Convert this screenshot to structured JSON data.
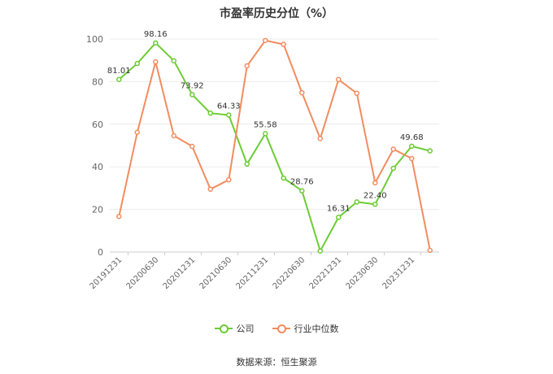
{
  "chart_data": {
    "type": "line",
    "title": "市盈率历史分位（%）",
    "xlabel": "",
    "ylabel": "",
    "ylim": [
      0,
      100
    ],
    "yticks": [
      0,
      20,
      40,
      60,
      80,
      100
    ],
    "x": [
      "20191231",
      "20200331",
      "20200630",
      "20200930",
      "20201231",
      "20210331",
      "20210630",
      "20210930",
      "20211231",
      "20220331",
      "20220630",
      "20220930",
      "20221231",
      "20230331",
      "20230630",
      "20230930",
      "20231231",
      "20240331"
    ],
    "xtick_labels": [
      "20191231",
      "20200630",
      "20201231",
      "20210630",
      "20211231",
      "20220630",
      "20221231",
      "20230630",
      "20231231"
    ],
    "grid": true,
    "legend_position": "bottom",
    "series": [
      {
        "name": "公司",
        "color": "#6ccc33",
        "values": [
          81.01,
          88.5,
          98.16,
          89.8,
          73.92,
          65.2,
          64.33,
          41.3,
          55.58,
          34.7,
          28.76,
          0.5,
          16.31,
          23.5,
          22.4,
          39.3,
          49.68,
          47.5
        ],
        "labels": {
          "0": "81.01",
          "2": "98.16",
          "4": "73.92",
          "6": "64.33",
          "8": "55.58",
          "10": "28.76",
          "12": "16.31",
          "14": "22.40",
          "16": "49.68"
        }
      },
      {
        "name": "行业中位数",
        "color": "#f28c5f",
        "values": [
          16.7,
          56.2,
          89.3,
          54.6,
          49.6,
          29.5,
          33.9,
          87.4,
          99.3,
          97.5,
          74.8,
          53.3,
          81.0,
          74.5,
          32.5,
          48.3,
          43.9,
          0.8
        ]
      }
    ]
  },
  "legend": {
    "company": "公司",
    "industry": "行业中位数"
  },
  "source": "数据来源：恒生聚源"
}
